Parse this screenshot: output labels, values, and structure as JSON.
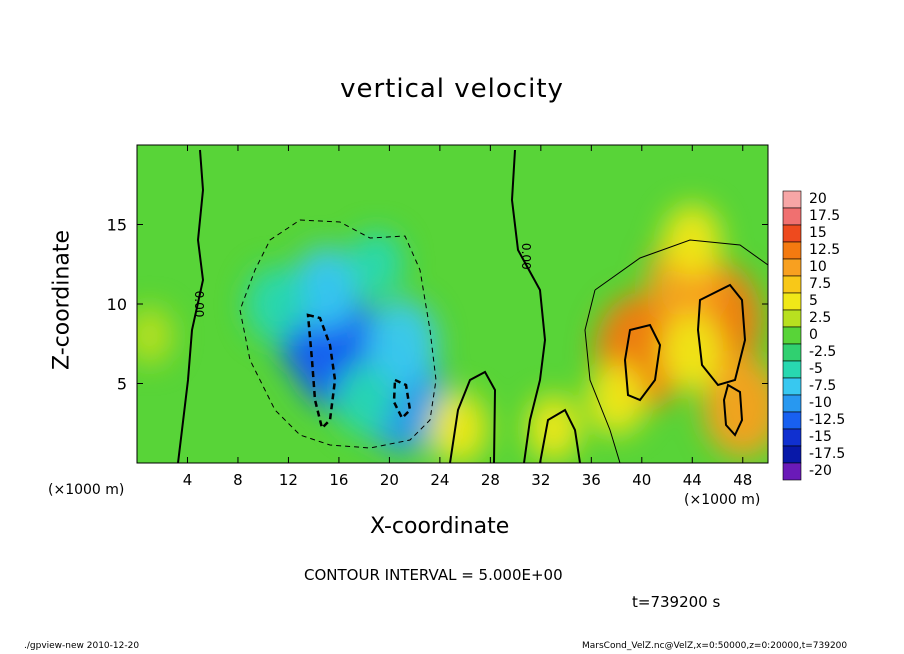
{
  "chart_data": {
    "type": "heatmap",
    "title": "vertical velocity",
    "xlabel": "X-coordinate",
    "ylabel": "Z-coordinate",
    "x_unit_label": "(×1000 m)",
    "xlim": [
      0,
      50
    ],
    "ylim": [
      0,
      20
    ],
    "x_ticks": [
      "4",
      "8",
      "12",
      "16",
      "20",
      "24",
      "28",
      "32",
      "36",
      "40",
      "44",
      "48"
    ],
    "x_tick_values": [
      4,
      8,
      12,
      16,
      20,
      24,
      28,
      32,
      36,
      40,
      44,
      48
    ],
    "y_ticks": [
      "5",
      "10",
      "15"
    ],
    "y_tick_values": [
      5,
      10,
      15
    ],
    "colorbar": {
      "labels": [
        "20",
        "17.5",
        "15",
        "12.5",
        "10",
        "7.5",
        "5",
        "2.5",
        "0",
        "-2.5",
        "-5",
        "-7.5",
        "-10",
        "-12.5",
        "-15",
        "-17.5",
        "-20"
      ],
      "colors": [
        "#f7a6a6",
        "#f07070",
        "#ee4a1e",
        "#f47a10",
        "#f8a020",
        "#f8c818",
        "#f0e818",
        "#b8e020",
        "#58d438",
        "#30d070",
        "#28d8b0",
        "#38c8f0",
        "#2898f0",
        "#1860f0",
        "#1030d0",
        "#0818a8",
        "#6a1ab8"
      ]
    },
    "cells": [
      {
        "x": 16,
        "z": 7,
        "w": -13
      },
      {
        "x": 14.5,
        "z": 8.5,
        "w": -12
      },
      {
        "x": 21,
        "z": 4,
        "w": -11
      },
      {
        "x": 15,
        "z": 11,
        "w": -7
      },
      {
        "x": 21,
        "z": 7.5,
        "w": -8
      },
      {
        "x": 11,
        "z": 10,
        "w": -5.5
      },
      {
        "x": 19,
        "z": 12.5,
        "w": -4
      },
      {
        "x": 18,
        "z": 4,
        "w": -5
      },
      {
        "x": 40,
        "z": 7,
        "w": 13
      },
      {
        "x": 46,
        "z": 9,
        "w": 12
      },
      {
        "x": 48,
        "z": 3.5,
        "w": 10
      },
      {
        "x": 43.5,
        "z": 11.5,
        "w": 9
      },
      {
        "x": 44,
        "z": 14,
        "w": 5
      },
      {
        "x": 44,
        "z": 7,
        "w": 6
      },
      {
        "x": 38,
        "z": 4,
        "w": 5
      },
      {
        "x": 25.5,
        "z": 2.2,
        "w": 5
      },
      {
        "x": 33,
        "z": 2.2,
        "w": 4
      },
      {
        "x": 1,
        "z": 8,
        "w": 2.5
      }
    ],
    "contour_labels": [
      {
        "text": "0.00",
        "x": 4.6,
        "z": 10
      },
      {
        "text": "0.00",
        "x": 30.5,
        "z": 13
      }
    ]
  },
  "contour_interval_label": "CONTOUR INTERVAL = 5.000E+00",
  "time_label": "t=739200 s",
  "footer_left": "./gpview-new  2010-12-20",
  "footer_right": "MarsCond_VelZ.nc@VelZ,x=0:50000,z=0:20000,t=739200"
}
